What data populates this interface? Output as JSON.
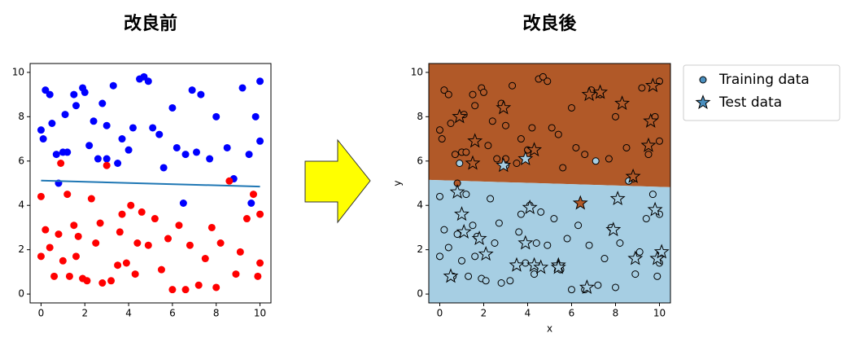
{
  "chart_data": [
    {
      "type": "scatter",
      "title": "改良前",
      "xlim": [
        -0.5,
        10.5
      ],
      "ylim": [
        -0.4,
        10.4
      ],
      "xticks": [
        0,
        2,
        4,
        6,
        8,
        10
      ],
      "yticks": [
        0,
        2,
        4,
        6,
        8,
        10
      ],
      "series": [
        {
          "color": "#0000ff",
          "x": [
            0,
            0.1,
            0.2,
            0.4,
            0.5,
            0.7,
            0.8,
            1,
            1.1,
            1.2,
            1.5,
            1.6,
            1.9,
            2,
            2.2,
            2.4,
            2.6,
            2.8,
            3,
            3,
            3.3,
            3.5,
            3.7,
            4,
            4.2,
            4.5,
            4.7,
            4.9,
            5.1,
            5.4,
            5.6,
            6,
            6.2,
            6.5,
            6.6,
            6.9,
            7.1,
            7.3,
            7.7,
            8,
            8.5,
            8.8,
            9.2,
            9.5,
            9.6,
            9.8,
            10,
            10
          ],
          "values": [
            7.4,
            7,
            9.2,
            9,
            7.7,
            6.3,
            5,
            6.4,
            8.1,
            6.4,
            9,
            8.5,
            9.3,
            9.1,
            6.7,
            7.8,
            6.1,
            8.6,
            7.6,
            6.1,
            9.4,
            5.9,
            7,
            6.5,
            7.5,
            9.7,
            9.8,
            9.6,
            7.5,
            7.2,
            5.7,
            8.4,
            6.6,
            4.1,
            6.3,
            9.2,
            6.4,
            9,
            6.1,
            8,
            6.6,
            5.2,
            9.3,
            6.3,
            4.1,
            8,
            9.6,
            6.9
          ]
        },
        {
          "color": "#ff0000",
          "x": [
            0,
            0,
            0.2,
            0.4,
            0.6,
            0.8,
            0.9,
            1,
            1.2,
            1.3,
            1.5,
            1.6,
            1.7,
            1.9,
            2.1,
            2.3,
            2.5,
            2.7,
            2.8,
            3,
            3.2,
            3.5,
            3.6,
            3.7,
            3.9,
            4.1,
            4.3,
            4.4,
            4.6,
            4.9,
            5.2,
            5.5,
            5.8,
            6,
            6.3,
            6.6,
            6.8,
            7.2,
            7.5,
            7.8,
            8,
            8.2,
            8.6,
            8.9,
            9.1,
            9.4,
            9.7,
            9.9,
            10,
            10
          ],
          "values": [
            1.7,
            4.4,
            2.9,
            2.1,
            0.8,
            2.7,
            5.9,
            1.5,
            4.5,
            0.8,
            3.1,
            1.7,
            2.6,
            0.7,
            0.6,
            4.3,
            2.3,
            3.2,
            0.5,
            5.8,
            0.6,
            1.3,
            2.8,
            3.6,
            1.4,
            4,
            0.9,
            2.3,
            3.7,
            2.2,
            3.4,
            1.1,
            2.5,
            0.2,
            3.1,
            0.2,
            2.2,
            0.4,
            1.6,
            3,
            0.3,
            2.3,
            5.1,
            0.9,
            1.9,
            3.4,
            4.5,
            0.8,
            1.4,
            3.6
          ]
        },
        {
          "type": "line",
          "color": "#1f77b4",
          "x": [
            0,
            10
          ],
          "values": [
            5.12,
            4.85
          ]
        }
      ]
    },
    {
      "type": "scatter",
      "title": "改良後",
      "xlabel": "x",
      "ylabel": "y",
      "xlim": [
        -0.5,
        10.5
      ],
      "ylim": [
        -0.4,
        10.4
      ],
      "xticks": [
        0,
        2,
        4,
        6,
        8,
        10
      ],
      "yticks": [
        0,
        2,
        4,
        6,
        8,
        10
      ],
      "boundary": {
        "x": [
          -0.5,
          10.5
        ],
        "values": [
          5.15,
          4.82
        ]
      },
      "region_colors": [
        "#a6cee3",
        "#b15928"
      ],
      "class_colors": [
        "#a6cee3",
        "#b15928"
      ],
      "legend": "upper right outside",
      "series": [
        {
          "name": "Training data",
          "marker": "circle",
          "color": "#4a8fbf",
          "x": [
            0,
            0.1,
            0.2,
            0.4,
            0.5,
            0.7,
            0.8,
            1,
            1.1,
            1.2,
            1.5,
            1.6,
            1.9,
            2,
            2.2,
            2.4,
            2.6,
            2.8,
            3,
            3,
            3.3,
            3.5,
            3.7,
            4,
            4.2,
            4.5,
            4.7,
            4.9,
            5.1,
            5.4,
            5.6,
            6,
            6.2,
            6.6,
            6.9,
            7.1,
            7.3,
            7.7,
            8,
            8.5,
            8.8,
            9.2,
            9.5,
            9.8,
            10,
            10,
            0,
            0,
            0.2,
            0.4,
            0.6,
            0.8,
            0.9,
            1,
            1.2,
            1.3,
            1.5,
            1.6,
            1.7,
            1.9,
            2.1,
            2.3,
            2.5,
            2.7,
            2.8,
            3,
            3.2,
            3.5,
            3.6,
            3.7,
            3.9,
            4.1,
            4.3,
            4.4,
            4.6,
            4.9,
            5.2,
            5.5,
            5.8,
            6,
            6.3,
            6.6,
            6.8,
            7.2,
            7.5,
            7.8,
            8,
            8.2,
            8.6,
            8.9,
            9.1,
            9.4,
            9.7,
            9.9,
            10,
            10
          ],
          "values": [
            7.4,
            7,
            9.2,
            9,
            7.7,
            6.3,
            5,
            6.4,
            8.1,
            6.4,
            9,
            8.5,
            9.3,
            9.1,
            6.7,
            7.8,
            6.1,
            8.6,
            7.6,
            6.1,
            9.4,
            5.9,
            7,
            6.5,
            7.5,
            9.7,
            9.8,
            9.6,
            7.5,
            7.2,
            5.7,
            8.4,
            6.6,
            6.3,
            9.2,
            6,
            9,
            6.1,
            8,
            6.6,
            5.2,
            9.3,
            6.3,
            8,
            9.6,
            6.9,
            1.7,
            4.4,
            2.9,
            2.1,
            0.8,
            2.7,
            5.9,
            1.5,
            4.5,
            0.8,
            3.1,
            1.7,
            2.6,
            0.7,
            0.6,
            4.3,
            2.3,
            3.2,
            0.5,
            5.8,
            0.6,
            1.3,
            2.8,
            3.6,
            1.4,
            4,
            0.9,
            2.3,
            3.7,
            2.2,
            3.4,
            1.1,
            2.5,
            0.2,
            3.1,
            0.2,
            2.2,
            0.4,
            1.6,
            3,
            0.3,
            2.3,
            5.1,
            0.9,
            1.9,
            3.4,
            4.5,
            0.8,
            1.4,
            3.6
          ],
          "classes": [
            1,
            1,
            1,
            1,
            1,
            1,
            1,
            1,
            1,
            1,
            1,
            1,
            1,
            1,
            1,
            1,
            1,
            1,
            1,
            1,
            1,
            1,
            1,
            1,
            1,
            1,
            1,
            1,
            1,
            1,
            1,
            1,
            1,
            1,
            1,
            0,
            1,
            1,
            1,
            1,
            1,
            1,
            1,
            1,
            1,
            1,
            0,
            0,
            0,
            0,
            0,
            0,
            0,
            0,
            0,
            0,
            0,
            0,
            0,
            0,
            0,
            0,
            0,
            0,
            0,
            0,
            0,
            0,
            0,
            0,
            0,
            0,
            0,
            0,
            0,
            0,
            0,
            0,
            0,
            0,
            0,
            0,
            0,
            0,
            0,
            0,
            0,
            0,
            0,
            0,
            0,
            0,
            0,
            0,
            0,
            0
          ]
        },
        {
          "name": "Test data",
          "marker": "star",
          "color": "#4a8fbf",
          "x": [
            0.5,
            0.8,
            0.9,
            1,
            1.1,
            1.6,
            1.5,
            1.8,
            2.1,
            2.9,
            2.9,
            3.5,
            3.9,
            3.9,
            4.1,
            4.3,
            4.3,
            4.6,
            5.4,
            5.4,
            6.4,
            6.7,
            6.8,
            7.3,
            7.9,
            8.1,
            8.3,
            8.8,
            8.9,
            9.5,
            9.6,
            9.7,
            9.8,
            9.9,
            10.1
          ],
          "values": [
            0.8,
            4.6,
            8,
            3.6,
            2.8,
            6.9,
            5.9,
            2.5,
            1.8,
            8.4,
            5.8,
            1.3,
            2.3,
            6.1,
            3.9,
            6.5,
            1.3,
            1.2,
            1.3,
            1.2,
            4.1,
            0.3,
            9,
            9.1,
            2.9,
            4.3,
            8.6,
            5.3,
            1.6,
            6.7,
            7.8,
            9.4,
            3.8,
            1.6,
            1.9
          ],
          "classes": [
            0,
            0,
            1,
            0,
            0,
            1,
            1,
            0,
            0,
            1,
            0,
            0,
            0,
            0,
            0,
            1,
            0,
            0,
            0,
            0,
            1,
            0,
            1,
            1,
            0,
            0,
            1,
            1,
            0,
            1,
            1,
            1,
            0,
            0,
            0
          ]
        }
      ]
    }
  ]
}
